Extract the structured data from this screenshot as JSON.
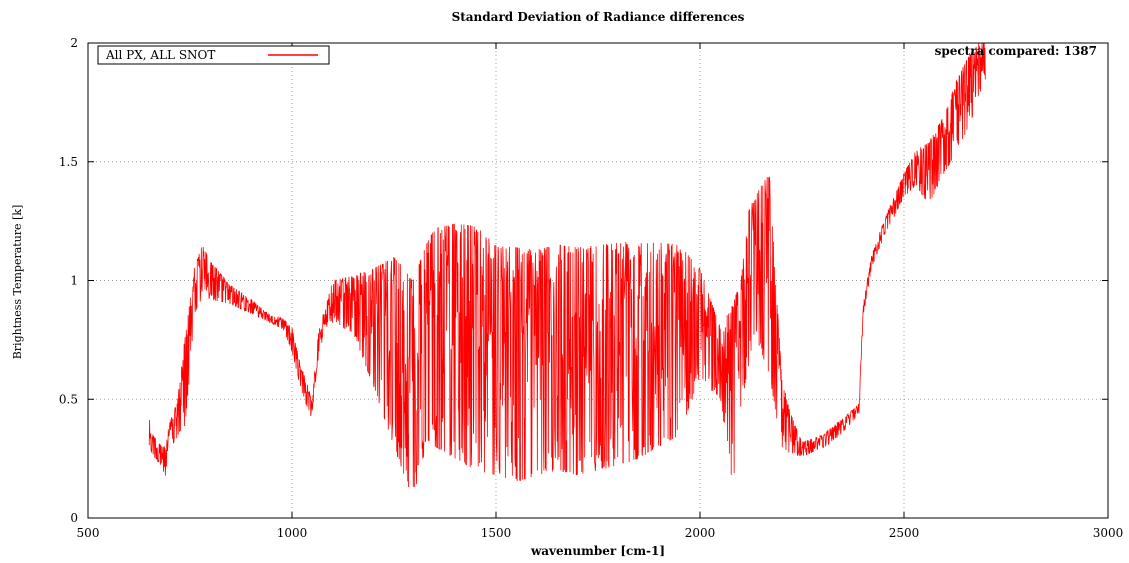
{
  "chart_data": {
    "type": "line",
    "title": "Standard Deviation of Radiance differences",
    "xlabel": "wavenumber [cm-1]",
    "ylabel": "Brightness Temperature [k]",
    "annotation": "spectra compared: 1387",
    "xlim": [
      500,
      3000
    ],
    "ylim": [
      0,
      2
    ],
    "xticks": [
      500,
      1000,
      1500,
      2000,
      2500,
      3000
    ],
    "yticks": [
      0,
      0.5,
      1,
      1.5,
      2
    ],
    "xtick_labels": [
      "500",
      "1000",
      "1500",
      "2000",
      "2500",
      "3000"
    ],
    "ytick_labels": [
      "0",
      "0.5",
      "1",
      "1.5",
      "2"
    ],
    "grid": true,
    "legend_position": "top-left",
    "series": [
      {
        "name": "All PX, ALL SNOT",
        "color": "#ff0000",
        "envelope": {
          "x": [
            650,
            660,
            680,
            690,
            700,
            720,
            740,
            760,
            780,
            800,
            850,
            900,
            950,
            980,
            1000,
            1020,
            1040,
            1050,
            1060,
            1080,
            1100,
            1150,
            1200,
            1250,
            1300,
            1320,
            1350,
            1400,
            1450,
            1500,
            1550,
            1600,
            1650,
            1700,
            1750,
            1800,
            1850,
            1900,
            1950,
            2000,
            2020,
            2050,
            2080,
            2100,
            2120,
            2150,
            2170,
            2200,
            2220,
            2250,
            2300,
            2350,
            2390,
            2400,
            2420,
            2450,
            2500,
            2530,
            2560,
            2600,
            2630,
            2660,
            2680,
            2700
          ],
          "upper": [
            0.42,
            0.35,
            0.3,
            0.32,
            0.4,
            0.5,
            0.8,
            1.05,
            1.15,
            1.08,
            0.98,
            0.92,
            0.85,
            0.84,
            0.8,
            0.65,
            0.55,
            0.48,
            0.75,
            0.88,
            1.0,
            1.02,
            1.05,
            1.1,
            1.0,
            1.12,
            1.22,
            1.24,
            1.23,
            1.15,
            1.14,
            1.13,
            1.15,
            1.14,
            1.15,
            1.16,
            1.17,
            1.16,
            1.15,
            1.05,
            0.95,
            0.8,
            0.9,
            1.0,
            1.3,
            1.4,
            1.45,
            0.6,
            0.45,
            0.32,
            0.35,
            0.42,
            0.48,
            0.9,
            1.1,
            1.25,
            1.45,
            1.55,
            1.58,
            1.7,
            1.85,
            1.95,
            2.0,
            2.0
          ],
          "lower": [
            0.3,
            0.26,
            0.22,
            0.16,
            0.3,
            0.33,
            0.4,
            0.85,
            0.93,
            0.92,
            0.9,
            0.86,
            0.82,
            0.79,
            0.7,
            0.55,
            0.45,
            0.41,
            0.62,
            0.8,
            0.82,
            0.78,
            0.55,
            0.3,
            0.06,
            0.25,
            0.3,
            0.25,
            0.2,
            0.18,
            0.15,
            0.18,
            0.2,
            0.18,
            0.2,
            0.22,
            0.25,
            0.3,
            0.35,
            0.6,
            0.55,
            0.5,
            0.13,
            0.45,
            0.65,
            0.7,
            0.6,
            0.3,
            0.27,
            0.26,
            0.29,
            0.36,
            0.44,
            0.85,
            1.05,
            1.18,
            1.35,
            1.4,
            1.32,
            1.45,
            1.55,
            1.65,
            1.75,
            1.85
          ]
        }
      }
    ]
  }
}
